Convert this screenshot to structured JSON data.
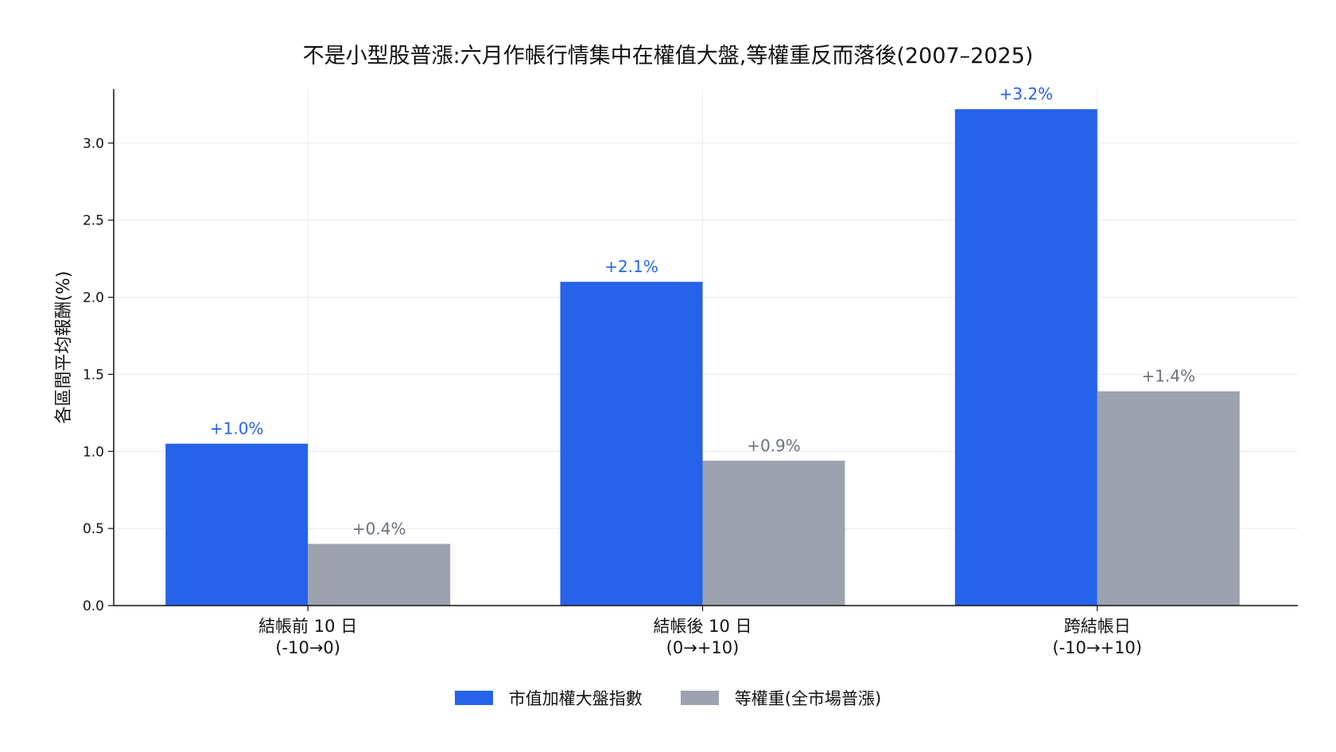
{
  "chart_data": {
    "type": "bar",
    "title": "不是小型股普漲:六月作帳行情集中在權值大盤,等權重反而落後(2007–2025)",
    "xlabel": "",
    "ylabel": "各區間平均報酬(%)",
    "ylim": [
      0,
      3.35
    ],
    "yticks": [
      "0.0",
      "0.5",
      "1.0",
      "1.5",
      "2.0",
      "2.5",
      "3.0"
    ],
    "grid": true,
    "legend_position": "bottom-center",
    "categories": [
      [
        "結帳前 10 日",
        "(-10→0)"
      ],
      [
        "結帳後 10 日",
        "(0→+10)"
      ],
      [
        "跨結帳日",
        "(-10→+10)"
      ]
    ],
    "series": [
      {
        "name": "市值加權大盤指數",
        "color": "#2563eb",
        "values": [
          1.05,
          2.1,
          3.22
        ],
        "labels": [
          "+1.0%",
          "+2.1%",
          "+3.2%"
        ]
      },
      {
        "name": "等權重(全市場普漲)",
        "color": "#9ca3af",
        "label_color": "#6b7280",
        "values": [
          0.4,
          0.94,
          1.39
        ],
        "labels": [
          "+0.4%",
          "+0.9%",
          "+1.4%"
        ]
      }
    ]
  }
}
